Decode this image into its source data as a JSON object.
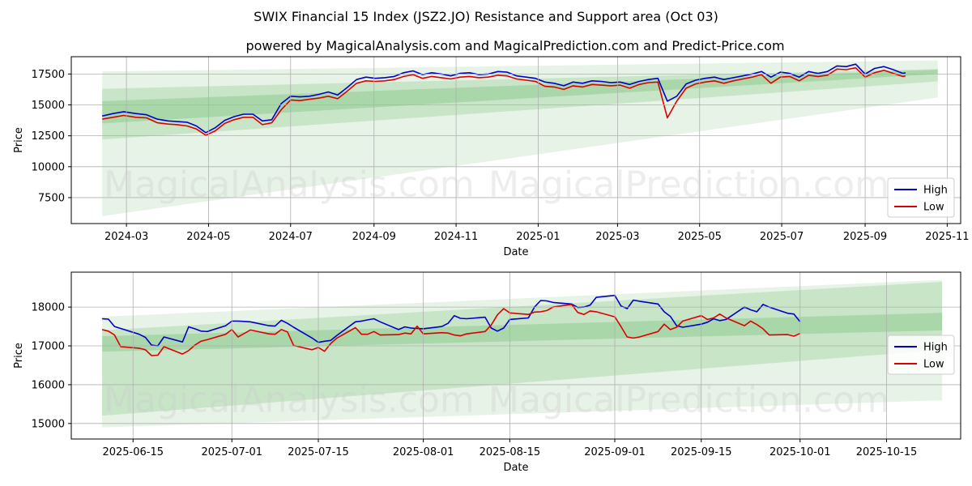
{
  "header": {
    "title": "SWIX Financial 15 Index (JSZ2.JO) Resistance and Support area (Oct 03)",
    "subtitle": "powered by MagicalAnalysis.com and MagicalPrediction.com and Predict-Price.com"
  },
  "watermarks": [
    "MagicalAnalysis.com",
    "MagicalPrediction.com"
  ],
  "colors": {
    "high": "#0000cc",
    "low": "#dd0000",
    "band": "#2e9e2e",
    "grid": "#b0b0b0"
  },
  "chart_data": [
    {
      "type": "line",
      "name": "full-range",
      "xlabel": "Date",
      "ylabel": "Price",
      "xlim": [
        "2024-01-20",
        "2025-11-11"
      ],
      "ylim": [
        5400,
        18900
      ],
      "x_ticks": [
        "2024-03-01",
        "2024-05-01",
        "2024-07-01",
        "2024-09-01",
        "2024-11-01",
        "2025-01-01",
        "2025-03-01",
        "2025-05-01",
        "2025-07-01",
        "2025-09-01",
        "2025-11-01"
      ],
      "x_tick_labels": [
        "2024-03",
        "2024-05",
        "2024-07",
        "2024-09",
        "2024-11",
        "2025-01",
        "2025-03",
        "2025-05",
        "2025-07",
        "2025-09",
        "2025-11"
      ],
      "y_ticks": [
        7500,
        10000,
        12500,
        15000,
        17500
      ],
      "y_tick_labels": [
        "7500",
        "10000",
        "12500",
        "15000",
        "17500"
      ],
      "grid": true,
      "legend": "lower-right",
      "bands": [
        {
          "x": [
            "2024-02-12",
            "2025-10-25"
          ],
          "upper": [
            17700,
            18600
          ],
          "lower": [
            6000,
            15600
          ]
        },
        {
          "x": [
            "2024-02-12",
            "2025-10-25"
          ],
          "upper": [
            16300,
            17900
          ],
          "lower": [
            12200,
            16900
          ]
        },
        {
          "x": [
            "2024-02-12",
            "2025-10-25"
          ],
          "upper": [
            15300,
            17850
          ],
          "lower": [
            13500,
            17500
          ]
        }
      ],
      "series": [
        {
          "name": "High",
          "x": [
            "2024-02-12",
            "2024-02-20",
            "2024-02-28",
            "2024-03-08",
            "2024-03-16",
            "2024-03-24",
            "2024-04-01",
            "2024-04-08",
            "2024-04-15",
            "2024-04-22",
            "2024-04-29",
            "2024-05-06",
            "2024-05-13",
            "2024-05-20",
            "2024-05-27",
            "2024-06-03",
            "2024-06-10",
            "2024-06-17",
            "2024-06-24",
            "2024-07-01",
            "2024-07-08",
            "2024-07-15",
            "2024-07-22",
            "2024-07-29",
            "2024-08-05",
            "2024-08-12",
            "2024-08-19",
            "2024-08-26",
            "2024-09-02",
            "2024-09-09",
            "2024-09-16",
            "2024-09-23",
            "2024-09-30",
            "2024-10-07",
            "2024-10-14",
            "2024-10-21",
            "2024-10-28",
            "2024-11-04",
            "2024-11-11",
            "2024-11-18",
            "2024-11-25",
            "2024-12-02",
            "2024-12-09",
            "2024-12-16",
            "2024-12-23",
            "2024-12-30",
            "2025-01-06",
            "2025-01-13",
            "2025-01-20",
            "2025-01-27",
            "2025-02-03",
            "2025-02-10",
            "2025-02-17",
            "2025-02-24",
            "2025-03-03",
            "2025-03-10",
            "2025-03-17",
            "2025-03-24",
            "2025-03-31",
            "2025-04-07",
            "2025-04-14",
            "2025-04-21",
            "2025-04-28",
            "2025-05-05",
            "2025-05-12",
            "2025-05-19",
            "2025-05-26",
            "2025-06-02",
            "2025-06-09",
            "2025-06-16",
            "2025-06-23",
            "2025-06-30",
            "2025-07-07",
            "2025-07-14",
            "2025-07-21",
            "2025-07-28",
            "2025-08-04",
            "2025-08-11",
            "2025-08-18",
            "2025-08-25",
            "2025-09-01",
            "2025-09-08",
            "2025-09-15",
            "2025-09-22",
            "2025-09-29",
            "2025-10-01"
          ],
          "values": [
            14100,
            14300,
            14450,
            14300,
            14200,
            13850,
            13700,
            13650,
            13600,
            13300,
            12750,
            13150,
            13750,
            14050,
            14250,
            14250,
            13700,
            13800,
            15100,
            15700,
            15650,
            15700,
            15850,
            16050,
            15800,
            16400,
            17050,
            17250,
            17150,
            17200,
            17300,
            17600,
            17750,
            17450,
            17600,
            17500,
            17350,
            17550,
            17600,
            17450,
            17500,
            17700,
            17650,
            17350,
            17250,
            17150,
            16850,
            16750,
            16550,
            16850,
            16750,
            16950,
            16900,
            16800,
            16850,
            16650,
            16900,
            17050,
            17150,
            15300,
            15700,
            16700,
            17000,
            17150,
            17250,
            17050,
            17200,
            17350,
            17500,
            17700,
            17250,
            17650,
            17550,
            17250,
            17700,
            17550,
            17700,
            18150,
            18100,
            18300,
            17500,
            17950,
            18100,
            17850,
            17550,
            17600
          ]
        },
        {
          "name": "Low",
          "x": [
            "2024-02-12",
            "2024-02-20",
            "2024-02-28",
            "2024-03-08",
            "2024-03-16",
            "2024-03-24",
            "2024-04-01",
            "2024-04-08",
            "2024-04-15",
            "2024-04-22",
            "2024-04-29",
            "2024-05-06",
            "2024-05-13",
            "2024-05-20",
            "2024-05-27",
            "2024-06-03",
            "2024-06-10",
            "2024-06-17",
            "2024-06-24",
            "2024-07-01",
            "2024-07-08",
            "2024-07-15",
            "2024-07-22",
            "2024-07-29",
            "2024-08-05",
            "2024-08-12",
            "2024-08-19",
            "2024-08-26",
            "2024-09-02",
            "2024-09-09",
            "2024-09-16",
            "2024-09-23",
            "2024-09-30",
            "2024-10-07",
            "2024-10-14",
            "2024-10-21",
            "2024-10-28",
            "2024-11-04",
            "2024-11-11",
            "2024-11-18",
            "2024-11-25",
            "2024-12-02",
            "2024-12-09",
            "2024-12-16",
            "2024-12-23",
            "2024-12-30",
            "2025-01-06",
            "2025-01-13",
            "2025-01-20",
            "2025-01-27",
            "2025-02-03",
            "2025-02-10",
            "2025-02-17",
            "2025-02-24",
            "2025-03-03",
            "2025-03-10",
            "2025-03-17",
            "2025-03-24",
            "2025-03-31",
            "2025-04-07",
            "2025-04-14",
            "2025-04-21",
            "2025-04-28",
            "2025-05-05",
            "2025-05-12",
            "2025-05-19",
            "2025-05-26",
            "2025-06-02",
            "2025-06-09",
            "2025-06-16",
            "2025-06-23",
            "2025-06-30",
            "2025-07-07",
            "2025-07-14",
            "2025-07-21",
            "2025-07-28",
            "2025-08-04",
            "2025-08-11",
            "2025-08-18",
            "2025-08-25",
            "2025-09-01",
            "2025-09-08",
            "2025-09-15",
            "2025-09-22",
            "2025-09-29",
            "2025-10-01"
          ],
          "values": [
            13850,
            14000,
            14150,
            14000,
            13950,
            13550,
            13450,
            13400,
            13300,
            13050,
            12550,
            12900,
            13500,
            13800,
            14000,
            14000,
            13400,
            13550,
            14600,
            15400,
            15350,
            15450,
            15550,
            15700,
            15500,
            16100,
            16750,
            16950,
            16900,
            16950,
            17050,
            17300,
            17450,
            17150,
            17300,
            17200,
            17100,
            17250,
            17300,
            17200,
            17250,
            17400,
            17350,
            17100,
            17000,
            16900,
            16500,
            16450,
            16250,
            16550,
            16450,
            16650,
            16600,
            16550,
            16600,
            16350,
            16650,
            16800,
            16850,
            13950,
            15300,
            16350,
            16700,
            16850,
            16950,
            16750,
            16950,
            17100,
            17250,
            17450,
            16750,
            17250,
            17300,
            16950,
            17400,
            17300,
            17400,
            17900,
            17850,
            18000,
            17250,
            17600,
            17800,
            17550,
            17300,
            17350
          ]
        }
      ]
    },
    {
      "type": "line",
      "name": "zoomed-range",
      "xlabel": "Date",
      "ylabel": "Price",
      "xlim": [
        "2025-06-05",
        "2025-10-27"
      ],
      "ylim": [
        14600,
        18900
      ],
      "x_ticks": [
        "2025-06-15",
        "2025-07-01",
        "2025-07-15",
        "2025-08-01",
        "2025-08-15",
        "2025-09-01",
        "2025-09-15",
        "2025-10-01",
        "2025-10-15"
      ],
      "x_tick_labels": [
        "2025-06-15",
        "2025-07-01",
        "2025-07-15",
        "2025-08-01",
        "2025-08-15",
        "2025-09-01",
        "2025-09-15",
        "2025-10-01",
        "2025-10-15"
      ],
      "y_ticks": [
        15000,
        16000,
        17000,
        18000
      ],
      "y_tick_labels": [
        "15000",
        "16000",
        "17000",
        "18000"
      ],
      "grid": true,
      "legend": "right",
      "bands": [
        {
          "x": [
            "2025-06-10",
            "2025-10-24"
          ],
          "upper": [
            17750,
            18700
          ],
          "lower": [
            14900,
            15600
          ]
        },
        {
          "x": [
            "2025-06-10",
            "2025-10-24"
          ],
          "upper": [
            17400,
            18650
          ],
          "lower": [
            15200,
            16900
          ]
        },
        {
          "x": [
            "2025-06-10",
            "2025-10-24"
          ],
          "upper": [
            17250,
            17850
          ],
          "lower": [
            16850,
            17400
          ]
        }
      ],
      "series": [
        {
          "name": "High",
          "x": [
            "2025-06-10",
            "2025-06-11",
            "2025-06-12",
            "2025-06-13",
            "2025-06-16",
            "2025-06-17",
            "2025-06-18",
            "2025-06-19",
            "2025-06-20",
            "2025-06-23",
            "2025-06-24",
            "2025-06-25",
            "2025-06-26",
            "2025-06-27",
            "2025-06-30",
            "2025-07-01",
            "2025-07-02",
            "2025-07-03",
            "2025-07-04",
            "2025-07-07",
            "2025-07-08",
            "2025-07-09",
            "2025-07-10",
            "2025-07-11",
            "2025-07-14",
            "2025-07-15",
            "2025-07-16",
            "2025-07-17",
            "2025-07-18",
            "2025-07-21",
            "2025-07-22",
            "2025-07-23",
            "2025-07-24",
            "2025-07-25",
            "2025-07-28",
            "2025-07-29",
            "2025-07-30",
            "2025-07-31",
            "2025-08-01",
            "2025-08-04",
            "2025-08-05",
            "2025-08-06",
            "2025-08-07",
            "2025-08-08",
            "2025-08-11",
            "2025-08-12",
            "2025-08-13",
            "2025-08-14",
            "2025-08-15",
            "2025-08-18",
            "2025-08-19",
            "2025-08-20",
            "2025-08-21",
            "2025-08-22",
            "2025-08-25",
            "2025-08-26",
            "2025-08-27",
            "2025-08-28",
            "2025-08-29",
            "2025-09-01",
            "2025-09-02",
            "2025-09-03",
            "2025-09-04",
            "2025-09-05",
            "2025-09-08",
            "2025-09-09",
            "2025-09-10",
            "2025-09-11",
            "2025-09-12",
            "2025-09-15",
            "2025-09-16",
            "2025-09-17",
            "2025-09-18",
            "2025-09-19",
            "2025-09-22",
            "2025-09-23",
            "2025-09-24",
            "2025-09-25",
            "2025-09-26",
            "2025-09-29",
            "2025-09-30",
            "2025-10-01"
          ],
          "values": [
            17700,
            17690,
            17500,
            17450,
            17300,
            17220,
            17020,
            17000,
            17230,
            17100,
            17490,
            17440,
            17380,
            17370,
            17520,
            17640,
            17640,
            17630,
            17620,
            17520,
            17510,
            17660,
            17580,
            17480,
            17200,
            17090,
            17120,
            17140,
            17270,
            17620,
            17640,
            17670,
            17700,
            17620,
            17420,
            17490,
            17460,
            17450,
            17440,
            17500,
            17580,
            17780,
            17710,
            17700,
            17740,
            17460,
            17380,
            17460,
            17680,
            17720,
            18000,
            18170,
            18160,
            18120,
            18080,
            17990,
            18000,
            18050,
            18250,
            18300,
            18030,
            17960,
            18180,
            18150,
            18080,
            17880,
            17760,
            17520,
            17480,
            17560,
            17610,
            17700,
            17650,
            17680,
            18000,
            17930,
            17880,
            18070,
            18000,
            17840,
            17820,
            17620
          ]
        },
        {
          "name": "Low",
          "x": [
            "2025-06-10",
            "2025-06-11",
            "2025-06-12",
            "2025-06-13",
            "2025-06-16",
            "2025-06-17",
            "2025-06-18",
            "2025-06-19",
            "2025-06-20",
            "2025-06-23",
            "2025-06-24",
            "2025-06-25",
            "2025-06-26",
            "2025-06-27",
            "2025-06-30",
            "2025-07-01",
            "2025-07-02",
            "2025-07-03",
            "2025-07-04",
            "2025-07-07",
            "2025-07-08",
            "2025-07-09",
            "2025-07-10",
            "2025-07-11",
            "2025-07-14",
            "2025-07-15",
            "2025-07-16",
            "2025-07-17",
            "2025-07-18",
            "2025-07-21",
            "2025-07-22",
            "2025-07-23",
            "2025-07-24",
            "2025-07-25",
            "2025-07-28",
            "2025-07-29",
            "2025-07-30",
            "2025-07-31",
            "2025-08-01",
            "2025-08-04",
            "2025-08-05",
            "2025-08-06",
            "2025-08-07",
            "2025-08-08",
            "2025-08-11",
            "2025-08-12",
            "2025-08-13",
            "2025-08-14",
            "2025-08-15",
            "2025-08-18",
            "2025-08-19",
            "2025-08-20",
            "2025-08-21",
            "2025-08-22",
            "2025-08-25",
            "2025-08-26",
            "2025-08-27",
            "2025-08-28",
            "2025-08-29",
            "2025-09-01",
            "2025-09-02",
            "2025-09-03",
            "2025-09-04",
            "2025-09-05",
            "2025-09-08",
            "2025-09-09",
            "2025-09-10",
            "2025-09-11",
            "2025-09-12",
            "2025-09-15",
            "2025-09-16",
            "2025-09-17",
            "2025-09-18",
            "2025-09-19",
            "2025-09-22",
            "2025-09-23",
            "2025-09-24",
            "2025-09-25",
            "2025-09-26",
            "2025-09-29",
            "2025-09-30",
            "2025-10-01"
          ],
          "values": [
            17420,
            17380,
            17280,
            16980,
            16940,
            16900,
            16750,
            16760,
            16980,
            16790,
            16880,
            17020,
            17120,
            17160,
            17300,
            17420,
            17230,
            17320,
            17410,
            17310,
            17300,
            17420,
            17360,
            17010,
            16900,
            16960,
            16860,
            17060,
            17200,
            17470,
            17300,
            17300,
            17370,
            17280,
            17290,
            17330,
            17310,
            17510,
            17310,
            17340,
            17330,
            17280,
            17260,
            17310,
            17370,
            17540,
            17800,
            17960,
            17850,
            17810,
            17870,
            17880,
            17910,
            18000,
            18070,
            17860,
            17810,
            17900,
            17880,
            17750,
            17500,
            17230,
            17200,
            17230,
            17370,
            17560,
            17420,
            17480,
            17640,
            17780,
            17680,
            17720,
            17820,
            17720,
            17520,
            17640,
            17550,
            17440,
            17280,
            17290,
            17250,
            17320
          ]
        }
      ]
    }
  ]
}
